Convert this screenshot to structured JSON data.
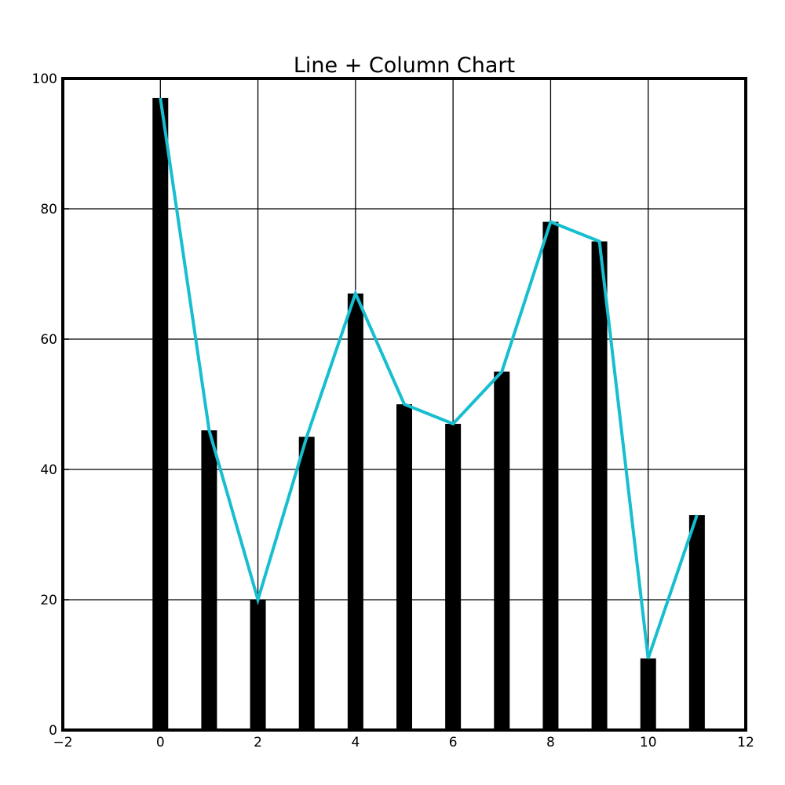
{
  "chart_data": {
    "type": "bar",
    "title": "Line + Column Chart",
    "xlabel": "",
    "ylabel": "",
    "x": [
      0,
      1,
      2,
      3,
      4,
      5,
      6,
      7,
      8,
      9,
      10,
      11
    ],
    "xlim": [
      -2,
      12
    ],
    "ylim": [
      0,
      100
    ],
    "x_ticks": [
      -2,
      0,
      2,
      4,
      6,
      8,
      10,
      12
    ],
    "x_tick_labels": [
      "−2",
      "0",
      "2",
      "4",
      "6",
      "8",
      "10",
      "12"
    ],
    "y_ticks": [
      0,
      20,
      40,
      60,
      80,
      100
    ],
    "y_tick_labels": [
      "0",
      "20",
      "40",
      "60",
      "80",
      "100"
    ],
    "grid": true,
    "series": [
      {
        "type": "bar",
        "color": "#000000",
        "values": [
          97,
          46,
          20,
          45,
          67,
          50,
          47,
          55,
          78,
          75,
          11,
          33
        ]
      },
      {
        "type": "line",
        "color": "#17becf",
        "values": [
          97,
          46,
          20,
          45,
          67,
          50,
          47,
          55,
          78,
          75,
          11,
          33
        ]
      }
    ]
  }
}
